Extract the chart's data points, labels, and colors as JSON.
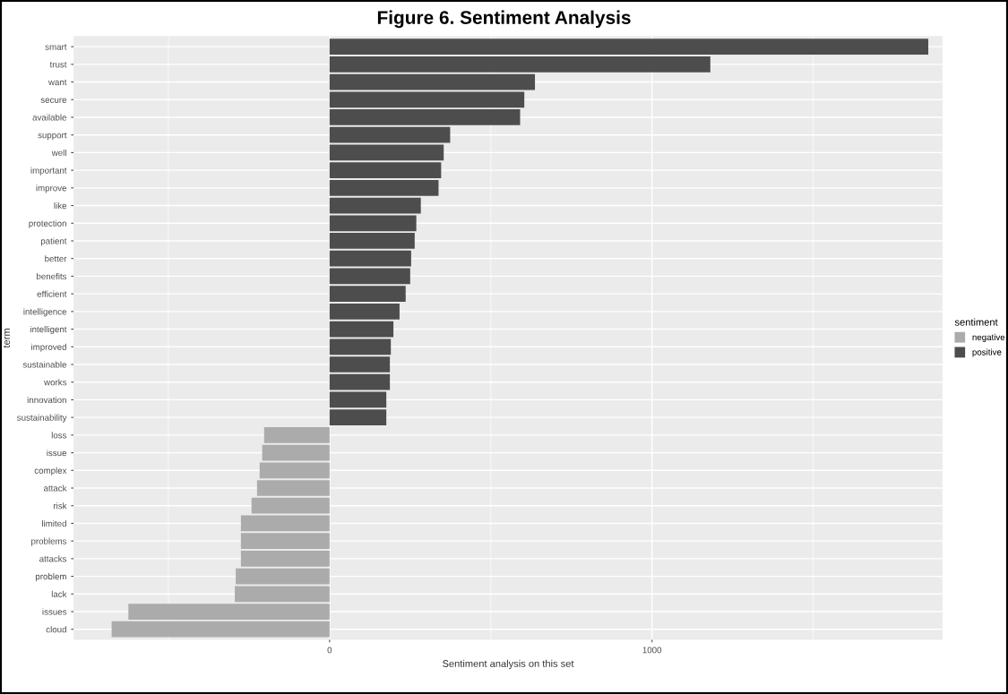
{
  "chart_data": {
    "type": "bar",
    "orientation": "horizontal",
    "title": "Figure 6. Sentiment Analysis",
    "xlabel": "Sentiment analysis on this set",
    "ylabel": "term",
    "legend_title": "sentiment",
    "categories": [
      "smart",
      "trust",
      "want",
      "secure",
      "available",
      "support",
      "well",
      "important",
      "improve",
      "like",
      "protection",
      "patient",
      "better",
      "benefits",
      "efficient",
      "intelligence",
      "intelligent",
      "improved",
      "sustainable",
      "works",
      "innovation",
      "sustainability",
      "loss",
      "issue",
      "complex",
      "attack",
      "risk",
      "limited",
      "problems",
      "attacks",
      "problem",
      "lack",
      "issues",
      "cloud"
    ],
    "series": [
      {
        "name": "negative",
        "color": "#ababab",
        "values": [
          null,
          null,
          null,
          null,
          null,
          null,
          null,
          null,
          null,
          null,
          null,
          null,
          null,
          null,
          null,
          null,
          null,
          null,
          null,
          null,
          null,
          null,
          -203,
          -209,
          -217,
          -225,
          -242,
          -275,
          -275,
          -275,
          -291,
          -294,
          -624,
          -676
        ]
      },
      {
        "name": "positive",
        "color": "#4d4d4d",
        "values": [
          1857,
          1181,
          637,
          604,
          591,
          374,
          354,
          346,
          338,
          283,
          269,
          264,
          253,
          250,
          236,
          217,
          198,
          190,
          187,
          187,
          176,
          176,
          null,
          null,
          null,
          null,
          null,
          null,
          null,
          null,
          null,
          null,
          null,
          null
        ]
      }
    ],
    "xlim": [
      -794,
      1901
    ],
    "xticks": [
      0,
      1000
    ],
    "grid": true,
    "legend": "right"
  }
}
